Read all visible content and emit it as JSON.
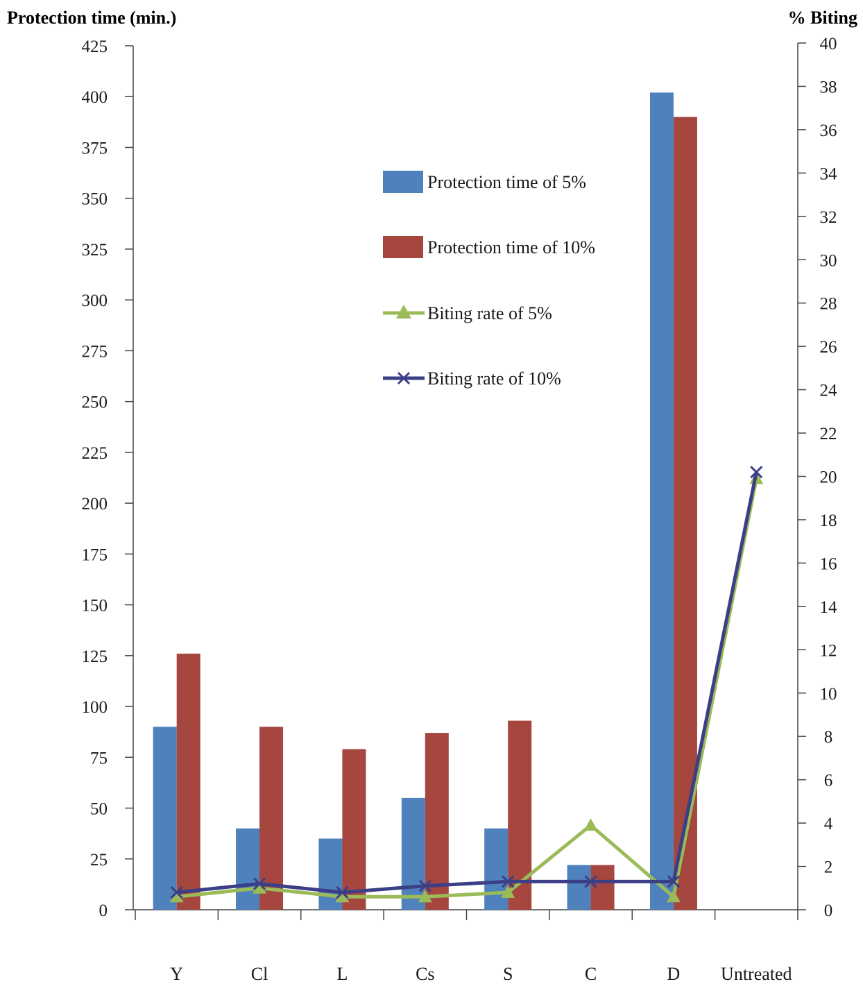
{
  "chart_data": {
    "type": "bar",
    "y_left_label": "Protection time (min.)",
    "y_right_label": "% Biting",
    "categories": [
      "Y",
      "Cl",
      "L",
      "Cs",
      "S",
      "C",
      "D",
      "Untreated"
    ],
    "series": [
      {
        "name": "Protection time of 5%",
        "kind": "bar",
        "axis": "left",
        "color": "#4f81bd",
        "values": [
          90,
          40,
          35,
          55,
          40,
          22,
          402,
          null
        ]
      },
      {
        "name": "Protection time of 10%",
        "kind": "bar",
        "axis": "left",
        "color": "#a5463f",
        "values": [
          126,
          90,
          79,
          87,
          93,
          22,
          390,
          null
        ]
      },
      {
        "name": "Biting rate of 5%",
        "kind": "line",
        "axis": "right",
        "color": "#9bbb59",
        "marker": "triangle",
        "values": [
          0.6,
          1.0,
          0.6,
          0.6,
          0.8,
          3.9,
          0.6,
          19.9
        ]
      },
      {
        "name": "Biting rate of 10%",
        "kind": "line",
        "axis": "right",
        "color": "#3b3f86",
        "marker": "x",
        "values": [
          0.8,
          1.2,
          0.8,
          1.1,
          1.3,
          1.3,
          1.3,
          20.2
        ]
      }
    ],
    "y_left_ticks": [
      0,
      25,
      50,
      75,
      100,
      125,
      150,
      175,
      200,
      225,
      250,
      275,
      300,
      325,
      350,
      375,
      400,
      425
    ],
    "y_right_ticks": [
      0,
      2,
      4,
      6,
      8,
      10,
      12,
      14,
      16,
      18,
      20,
      22,
      24,
      26,
      28,
      30,
      32,
      34,
      36,
      38,
      40
    ],
    "y_left_range": [
      0,
      425
    ],
    "y_right_range": [
      0,
      40
    ],
    "legend_position": "center-top",
    "grid": false
  }
}
